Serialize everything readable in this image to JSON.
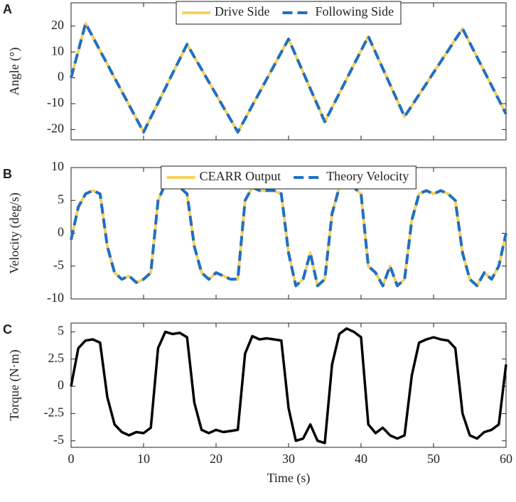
{
  "chart_data": [
    {
      "type": "line",
      "label": "A",
      "ylabel": "Angle (°)",
      "legend": "top",
      "show_xtick_labels": false,
      "x": [
        0,
        1,
        2,
        3,
        4,
        5,
        6,
        7,
        8,
        9,
        10,
        11,
        12,
        13,
        14,
        15,
        16,
        17,
        18,
        19,
        20,
        21,
        22,
        23,
        24,
        25,
        26,
        27,
        28,
        29,
        30,
        31,
        32,
        33,
        34,
        35,
        36,
        37,
        38,
        39,
        40,
        41,
        42,
        43,
        44,
        45,
        46,
        47,
        48,
        49,
        50,
        51,
        52,
        53,
        54,
        55,
        56,
        57,
        58,
        59,
        60
      ],
      "xlim": [
        0,
        60
      ],
      "xticks": [
        0,
        10,
        20,
        30,
        40,
        50,
        60
      ],
      "ylim": [
        -24,
        29
      ],
      "yticks": [
        -20,
        -10,
        0,
        10,
        20
      ],
      "series": [
        {
          "name": "Drive Side",
          "color": "#f7d25c",
          "style": "solid",
          "width": 4,
          "values": [
            0,
            10.5,
            21,
            15.8,
            10.5,
            5.3,
            0,
            -5.3,
            -10.5,
            -15.8,
            -21,
            -15.3,
            -9.7,
            -4,
            1.7,
            7.3,
            13,
            8.1,
            3.3,
            -1.6,
            -6.4,
            -11.3,
            -16.1,
            -21,
            -15.9,
            -10.7,
            -5.6,
            -0.4,
            4.7,
            9.9,
            15,
            8.6,
            2.2,
            -4.2,
            -10.6,
            -17,
            -11.5,
            -6,
            -0.5,
            5,
            10.5,
            16,
            9.8,
            3.6,
            -2.6,
            -8.8,
            -15,
            -10.8,
            -6.5,
            -2.3,
            2,
            6.3,
            10.5,
            14.8,
            19,
            13.5,
            8,
            2.5,
            -3,
            -8.5,
            -14
          ]
        },
        {
          "name": "Following Side",
          "color": "#1f6fc5",
          "style": "dashed",
          "width": 4,
          "values": [
            0,
            10.5,
            21,
            15.8,
            10.5,
            5.3,
            0,
            -5.3,
            -10.5,
            -15.8,
            -21,
            -15.3,
            -9.7,
            -4,
            1.7,
            7.3,
            13,
            8.1,
            3.3,
            -1.6,
            -6.4,
            -11.3,
            -16.1,
            -21,
            -15.9,
            -10.7,
            -5.6,
            -0.4,
            4.7,
            9.9,
            15,
            8.6,
            2.2,
            -4.2,
            -10.6,
            -17,
            -11.5,
            -6,
            -0.5,
            5,
            10.5,
            16,
            9.8,
            3.6,
            -2.6,
            -8.8,
            -15,
            -10.8,
            -6.5,
            -2.3,
            2,
            6.3,
            10.5,
            14.8,
            19,
            13.5,
            8,
            2.5,
            -3,
            -8.5,
            -14
          ]
        }
      ]
    },
    {
      "type": "line",
      "label": "B",
      "ylabel": "Velocity (deg/s)",
      "legend": "top",
      "show_xtick_labels": false,
      "x": [
        0,
        1,
        2,
        3,
        4,
        5,
        6,
        7,
        8,
        9,
        10,
        11,
        12,
        13,
        14,
        15,
        16,
        17,
        18,
        19,
        20,
        21,
        22,
        23,
        24,
        25,
        26,
        27,
        28,
        29,
        30,
        31,
        32,
        33,
        34,
        35,
        36,
        37,
        38,
        39,
        40,
        41,
        42,
        43,
        44,
        45,
        46,
        47,
        48,
        49,
        50,
        51,
        52,
        53,
        54,
        55,
        56,
        57,
        58,
        59,
        60
      ],
      "xlim": [
        0,
        60
      ],
      "xticks": [
        0,
        10,
        20,
        30,
        40,
        50,
        60
      ],
      "ylim": [
        -10,
        10
      ],
      "yticks": [
        -10,
        -5,
        0,
        5,
        10
      ],
      "series": [
        {
          "name": "CEARR Output",
          "color": "#f7d25c",
          "style": "solid",
          "width": 4,
          "values": [
            -1,
            4,
            6,
            6.5,
            6,
            -2,
            -6,
            -7,
            -6.5,
            -7.5,
            -7,
            -6,
            5,
            7.5,
            7,
            7,
            6,
            -2,
            -6,
            -7,
            -6,
            -6.5,
            -7,
            -7,
            5,
            7,
            6.5,
            6.5,
            6.5,
            6,
            -3,
            -8,
            -7,
            -3,
            -8,
            -7,
            3,
            7,
            8,
            7,
            6,
            -5,
            -6,
            -8,
            -5,
            -8,
            -7,
            2,
            6,
            6.5,
            6,
            6.5,
            6,
            5,
            -3,
            -7,
            -8,
            -6,
            -7,
            -5,
            0
          ]
        },
        {
          "name": "Theory Velocity",
          "color": "#1f6fc5",
          "style": "dashed",
          "width": 4,
          "values": [
            -1,
            4,
            6,
            6.5,
            6,
            -2,
            -6,
            -7,
            -6.5,
            -7.5,
            -7,
            -6,
            5,
            7.5,
            7,
            7,
            6,
            -2,
            -6,
            -7,
            -6,
            -6.5,
            -7,
            -7,
            5,
            7,
            6.5,
            6.5,
            6.5,
            6,
            -3,
            -8,
            -7,
            -3,
            -8,
            -7,
            3,
            7,
            8,
            7,
            6,
            -5,
            -6,
            -8,
            -5,
            -8,
            -7,
            2,
            6,
            6.5,
            6,
            6.5,
            6,
            5,
            -3,
            -7,
            -8,
            -6,
            -7,
            -5,
            0
          ]
        }
      ]
    },
    {
      "type": "line",
      "label": "C",
      "ylabel": "Torque (N·m)",
      "xlabel": "Time (s)",
      "show_xtick_labels": true,
      "x": [
        0,
        1,
        2,
        3,
        4,
        5,
        6,
        7,
        8,
        9,
        10,
        11,
        12,
        13,
        14,
        15,
        16,
        17,
        18,
        19,
        20,
        21,
        22,
        23,
        24,
        25,
        26,
        27,
        28,
        29,
        30,
        31,
        32,
        33,
        34,
        35,
        36,
        37,
        38,
        39,
        40,
        41,
        42,
        43,
        44,
        45,
        46,
        47,
        48,
        49,
        50,
        51,
        52,
        53,
        54,
        55,
        56,
        57,
        58,
        59,
        60
      ],
      "xlim": [
        0,
        60
      ],
      "xticks": [
        0,
        10,
        20,
        30,
        40,
        50,
        60
      ],
      "ylim": [
        -5.6,
        5.8
      ],
      "yticks": [
        -5,
        -2.5,
        0,
        2.5,
        5
      ],
      "series": [
        {
          "color": "#000000",
          "style": "solid",
          "width": 3.5,
          "values": [
            0,
            3.5,
            4.2,
            4.3,
            4,
            -1,
            -3.5,
            -4.2,
            -4.5,
            -4.2,
            -4.3,
            -3.8,
            3.5,
            5,
            4.8,
            4.9,
            4.5,
            -1.5,
            -4,
            -4.3,
            -4,
            -4.2,
            -4.1,
            -4,
            3,
            4.6,
            4.3,
            4.4,
            4.3,
            4.2,
            -2,
            -5,
            -4.8,
            -3.5,
            -5,
            -5.2,
            2,
            4.8,
            5.3,
            5,
            4.5,
            -3.5,
            -4.3,
            -3.8,
            -4.5,
            -4.8,
            -4.5,
            1,
            4,
            4.3,
            4.5,
            4.3,
            4.2,
            3.5,
            -2.5,
            -4.5,
            -4.8,
            -4.2,
            -4,
            -3.5,
            2
          ]
        }
      ]
    }
  ]
}
